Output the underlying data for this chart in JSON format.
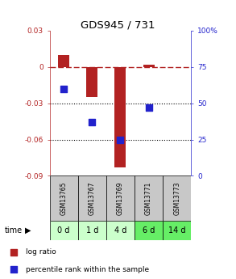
{
  "title": "GDS945 / 731",
  "samples": [
    "GSM13765",
    "GSM13767",
    "GSM13769",
    "GSM13771",
    "GSM13773"
  ],
  "time_labels": [
    "0 d",
    "1 d",
    "4 d",
    "6 d",
    "14 d"
  ],
  "log_ratio": [
    0.01,
    -0.025,
    -0.083,
    0.002,
    null
  ],
  "percentile_rank": [
    60,
    37,
    25,
    47,
    null
  ],
  "ylim_left": [
    -0.09,
    0.03
  ],
  "ylim_right": [
    0,
    100
  ],
  "bar_color": "#B22222",
  "dot_color": "#2222CC",
  "bg_gsm": "#C8C8C8",
  "time_colors": [
    "#CCFFCC",
    "#CCFFCC",
    "#CCFFCC",
    "#66EE66",
    "#66EE66"
  ],
  "legend_log": "log ratio",
  "legend_pct": "percentile rank within the sample",
  "bar_width": 0.4,
  "dot_size": 35,
  "left_yticks": [
    0.03,
    0,
    -0.03,
    -0.06,
    -0.09
  ],
  "left_yticklabels": [
    "0.03",
    "0",
    "-0.03",
    "-0.06",
    "-0.09"
  ],
  "right_yticks": [
    100,
    75,
    50,
    25,
    0
  ],
  "right_yticklabels": [
    "100%",
    "75",
    "50",
    "25",
    "0"
  ]
}
